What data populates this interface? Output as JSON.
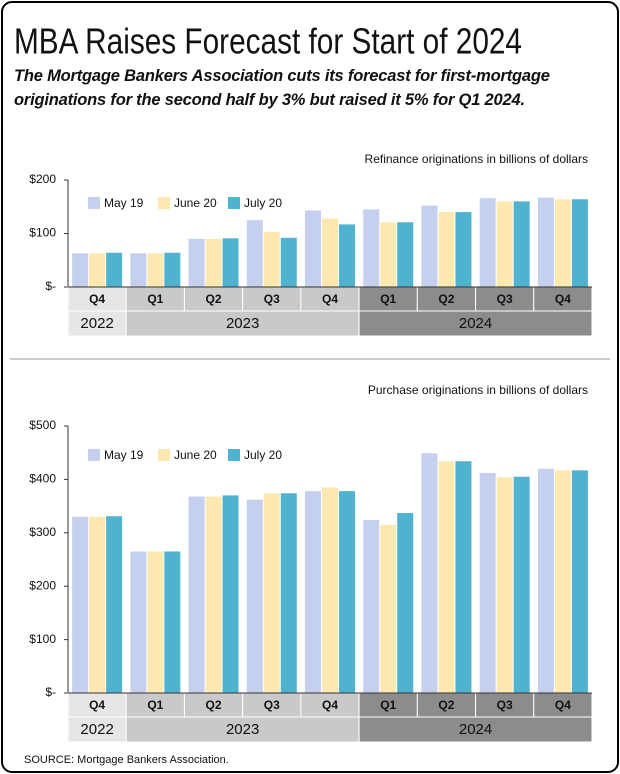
{
  "header": {
    "title": "MBA Raises Forecast for Start of 2024",
    "subtitle": "The Mortgage Bankers Association cuts its forecast for first-mortgage originations for the second half by 3% but raised it 5% for Q1 2024."
  },
  "source": "SOURCE: Mortgage Bankers Association.",
  "chart_data": [
    {
      "type": "bar",
      "title": "Refinance originations in billions of dollars",
      "groups": [
        {
          "label": "2022",
          "color": "#e6e6e6",
          "categories": [
            "Q4"
          ]
        },
        {
          "label": "2023",
          "color": "#c9c9c9",
          "categories": [
            "Q1",
            "Q2",
            "Q3",
            "Q4"
          ]
        },
        {
          "label": "2024",
          "color": "#8c8c8c",
          "categories": [
            "Q1",
            "Q2",
            "Q3",
            "Q4"
          ]
        }
      ],
      "series": [
        {
          "name": "May 19",
          "color": "#c5d0ee",
          "values": [
            63,
            63,
            90,
            125,
            143,
            145,
            152,
            166,
            167
          ]
        },
        {
          "name": "June 20",
          "color": "#fde8b0",
          "values": [
            63,
            63,
            90,
            103,
            128,
            121,
            140,
            160,
            164
          ]
        },
        {
          "name": "July 20",
          "color": "#4fb3cf",
          "values": [
            64,
            64,
            91,
            92,
            117,
            121,
            140,
            160,
            164
          ]
        }
      ],
      "ylim": [
        0,
        200
      ],
      "yticks": [
        {
          "value": 0,
          "label": "$-"
        },
        {
          "value": 100,
          "label": "$100"
        },
        {
          "value": 200,
          "label": "$200"
        }
      ],
      "legend": "top-left"
    },
    {
      "type": "bar",
      "title": "Purchase originations in billions of dollars",
      "groups": [
        {
          "label": "2022",
          "color": "#e6e6e6",
          "categories": [
            "Q4"
          ]
        },
        {
          "label": "2023",
          "color": "#c9c9c9",
          "categories": [
            "Q1",
            "Q2",
            "Q3",
            "Q4"
          ]
        },
        {
          "label": "2024",
          "color": "#8c8c8c",
          "categories": [
            "Q1",
            "Q2",
            "Q3",
            "Q4"
          ]
        }
      ],
      "series": [
        {
          "name": "May 19",
          "color": "#c5d0ee",
          "values": [
            330,
            265,
            368,
            362,
            378,
            324,
            449,
            412,
            420
          ]
        },
        {
          "name": "June 20",
          "color": "#fde8b0",
          "values": [
            330,
            265,
            368,
            374,
            385,
            315,
            434,
            404,
            417
          ]
        },
        {
          "name": "July 20",
          "color": "#4fb3cf",
          "values": [
            331,
            265,
            370,
            374,
            378,
            337,
            434,
            405,
            417
          ]
        }
      ],
      "ylim": [
        0,
        500
      ],
      "yticks": [
        {
          "value": 0,
          "label": "$-"
        },
        {
          "value": 100,
          "label": "$100"
        },
        {
          "value": 200,
          "label": "$200"
        },
        {
          "value": 300,
          "label": "$300"
        },
        {
          "value": 400,
          "label": "$400"
        },
        {
          "value": 500,
          "label": "$500"
        }
      ],
      "legend": "top-left"
    }
  ]
}
